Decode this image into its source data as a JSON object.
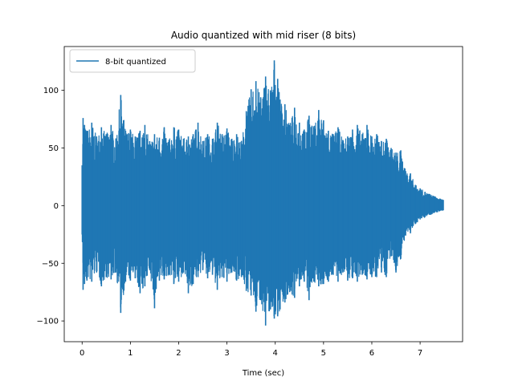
{
  "chart_data": {
    "type": "line",
    "title": "Audio quantized with mid riser (8 bits)",
    "xlabel": "Time (sec)",
    "ylabel": "",
    "xlim": [
      -0.37,
      7.88
    ],
    "ylim": [
      -118,
      138
    ],
    "xticks": [
      0,
      1,
      2,
      3,
      4,
      5,
      6,
      7
    ],
    "yticks": [
      -100,
      -50,
      0,
      50,
      100
    ],
    "ytick_labels": [
      "−100",
      "−50",
      "0",
      "50",
      "100"
    ],
    "legend": {
      "position": "upper-left",
      "entries": [
        "8-bit quantized"
      ]
    },
    "grid": false,
    "series": [
      {
        "name": "8-bit quantized",
        "color": "#1f77b4",
        "envelope": {
          "x": [
            0.0,
            0.02,
            0.05,
            0.1,
            0.2,
            0.3,
            0.4,
            0.5,
            0.6,
            0.7,
            0.8,
            0.9,
            1.0,
            1.1,
            1.2,
            1.3,
            1.4,
            1.5,
            1.6,
            1.7,
            1.8,
            1.9,
            2.0,
            2.1,
            2.2,
            2.3,
            2.4,
            2.5,
            2.6,
            2.7,
            2.8,
            2.9,
            3.0,
            3.1,
            3.2,
            3.3,
            3.4,
            3.5,
            3.6,
            3.7,
            3.8,
            3.9,
            3.98,
            4.05,
            4.1,
            4.2,
            4.3,
            4.4,
            4.5,
            4.6,
            4.7,
            4.8,
            4.9,
            5.0,
            5.1,
            5.2,
            5.3,
            5.4,
            5.5,
            5.6,
            5.7,
            5.8,
            5.9,
            6.0,
            6.1,
            6.2,
            6.3,
            6.4,
            6.5,
            6.6,
            6.7,
            6.8,
            6.9,
            7.0,
            7.1,
            7.2,
            7.3,
            7.4,
            7.48
          ],
          "upper": [
            35,
            76,
            70,
            65,
            72,
            60,
            68,
            62,
            70,
            58,
            96,
            65,
            66,
            60,
            65,
            70,
            56,
            62,
            59,
            68,
            57,
            68,
            66,
            58,
            60,
            62,
            72,
            56,
            62,
            58,
            72,
            62,
            67,
            58,
            62,
            56,
            82,
            101,
            108,
            94,
            112,
            100,
            126,
            110,
            92,
            88,
            70,
            85,
            72,
            66,
            78,
            68,
            83,
            74,
            65,
            62,
            68,
            57,
            60,
            66,
            70,
            62,
            70,
            60,
            62,
            56,
            58,
            50,
            46,
            48,
            30,
            28,
            18,
            15,
            12,
            10,
            8,
            6,
            5
          ],
          "lower": [
            -25,
            -73,
            -68,
            -65,
            -66,
            -58,
            -70,
            -62,
            -64,
            -58,
            -93,
            -66,
            -65,
            -63,
            -76,
            -70,
            -56,
            -89,
            -65,
            -64,
            -60,
            -68,
            -66,
            -58,
            -76,
            -68,
            -62,
            -56,
            -63,
            -60,
            -73,
            -62,
            -66,
            -58,
            -65,
            -62,
            -74,
            -78,
            -92,
            -82,
            -104,
            -90,
            -98,
            -96,
            -90,
            -84,
            -75,
            -80,
            -70,
            -66,
            -82,
            -66,
            -70,
            -68,
            -66,
            -60,
            -66,
            -58,
            -65,
            -63,
            -66,
            -60,
            -64,
            -62,
            -62,
            -58,
            -62,
            -44,
            -58,
            -46,
            -26,
            -24,
            -16,
            -12,
            -10,
            -8,
            -6,
            -5,
            -4
          ]
        }
      }
    ]
  }
}
